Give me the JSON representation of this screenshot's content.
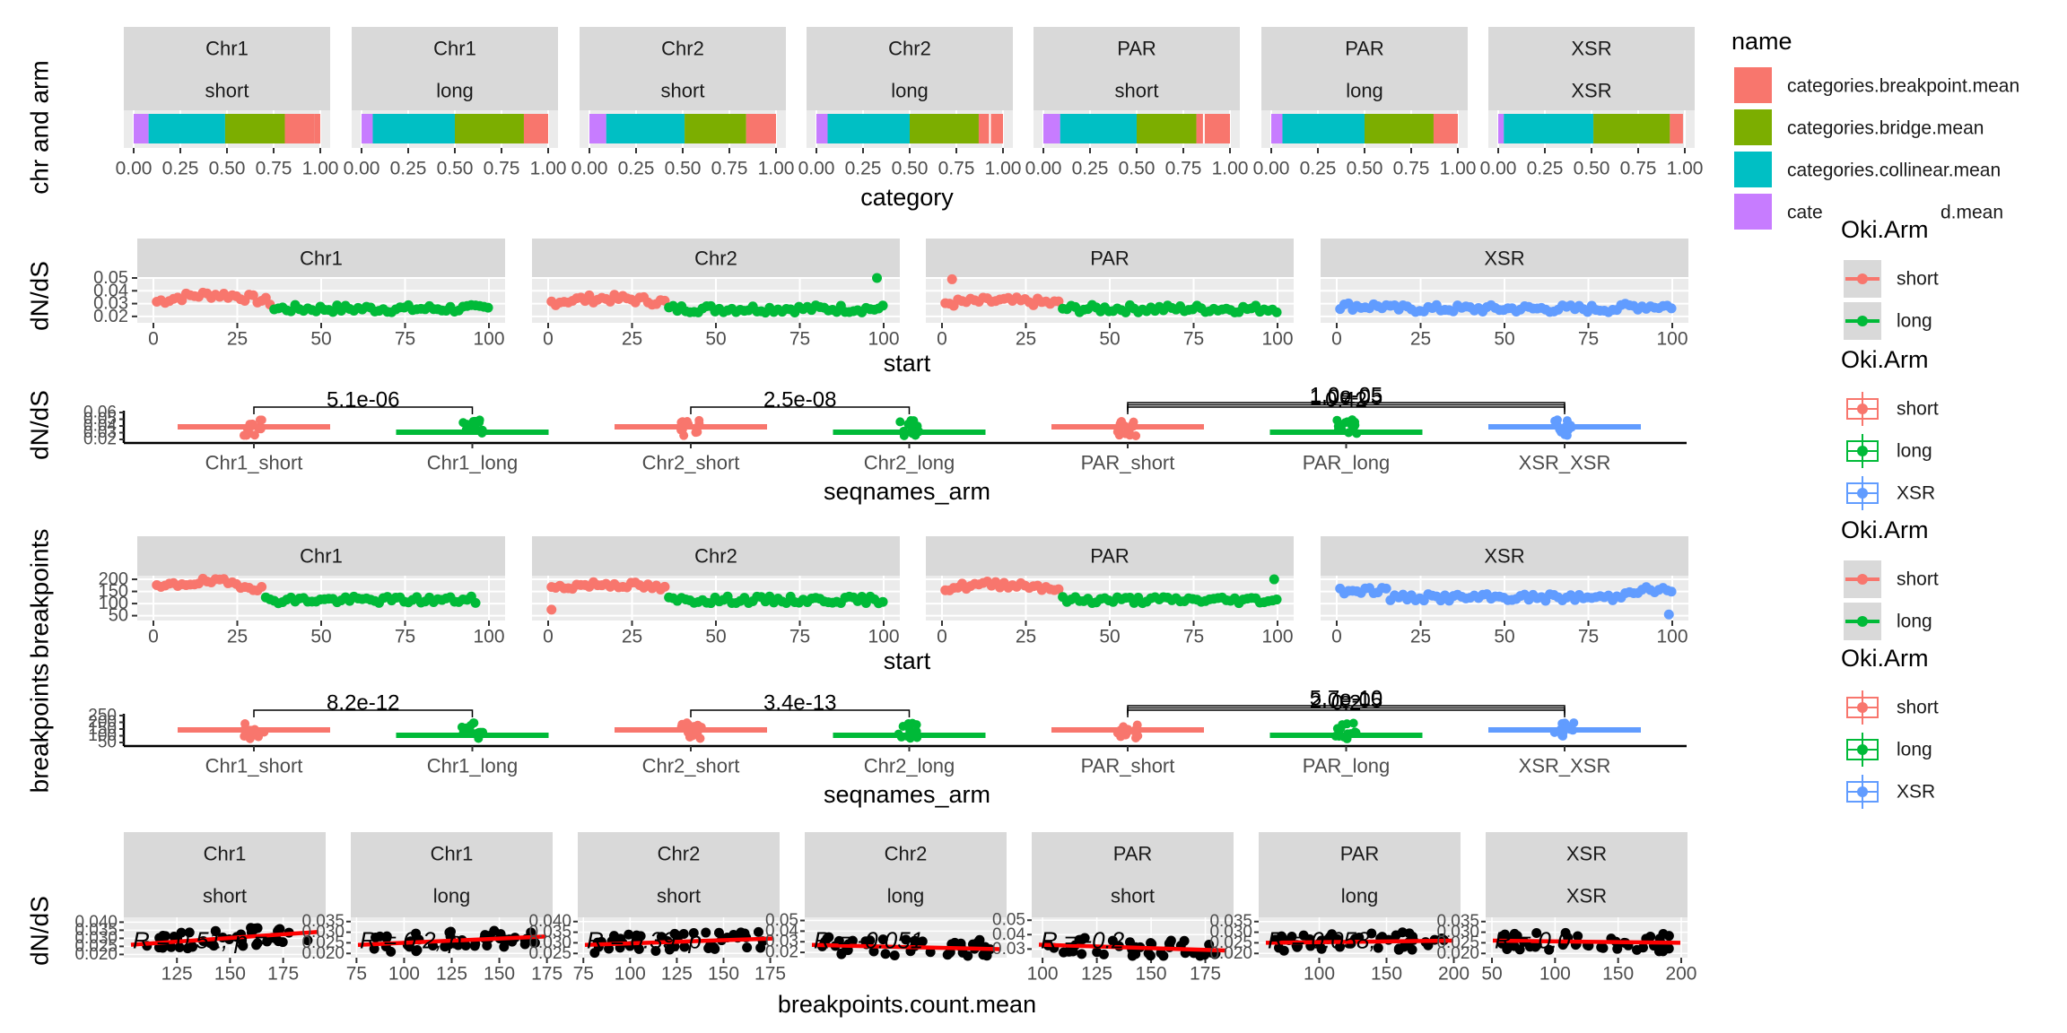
{
  "colors": {
    "strip_bg": "#D9D9D9",
    "panel_bg": "#EBEBEB",
    "grid": "#FFFFFF",
    "short": "#F8766D",
    "long": "#00BA38",
    "xsr": "#619CFF",
    "breakpoint": "#F8766D",
    "bridge": "#7CAE00",
    "collinear": "#00BFC4",
    "fourth_category": "#C77CFF",
    "fit_line": "#FF0000",
    "points": "#000000"
  },
  "legends": {
    "category": {
      "title": "name",
      "items": [
        {
          "label": "categories.breakpoint.mean",
          "color": "#F8766D"
        },
        {
          "label": "categories.bridge.mean",
          "color": "#7CAE00"
        },
        {
          "label": "categories.collinear.mean",
          "color": "#00BFC4"
        },
        {
          "label": "cate",
          "color": "#C77CFF",
          "label_tail": "d.mean"
        }
      ]
    },
    "arm_points_1": {
      "title": "Oki.Arm",
      "items": [
        {
          "label": "short",
          "color": "#F8766D"
        },
        {
          "label": "long",
          "color": "#00BA38"
        }
      ]
    },
    "arm_box_1": {
      "title": "Oki.Arm",
      "items": [
        {
          "label": "short",
          "color": "#F8766D"
        },
        {
          "label": "long",
          "color": "#00BA38"
        },
        {
          "label": "XSR",
          "color": "#619CFF"
        }
      ]
    },
    "arm_points_2": {
      "title": "Oki.Arm",
      "items": [
        {
          "label": "short",
          "color": "#F8766D"
        },
        {
          "label": "long",
          "color": "#00BA38"
        }
      ]
    },
    "arm_box_2": {
      "title": "Oki.Arm",
      "items": [
        {
          "label": "short",
          "color": "#F8766D"
        },
        {
          "label": "long",
          "color": "#00BA38"
        },
        {
          "label": "XSR",
          "color": "#619CFF"
        }
      ]
    }
  },
  "chart_data": [
    {
      "type": "bar",
      "orientation": "horizontal-stacked",
      "ylabel": "chr and arm",
      "xlabel": "category",
      "xlim": [
        0,
        1
      ],
      "xticks": [
        "0.00",
        "0.25",
        "0.50",
        "0.75",
        "1.00"
      ],
      "facets": [
        {
          "strip": [
            "Chr1",
            "short"
          ],
          "segments": [
            0.08,
            0.41,
            0.32,
            0.16,
            0.03
          ],
          "ticks": []
        },
        {
          "strip": [
            "Chr1",
            "long"
          ],
          "segments": [
            0.06,
            0.44,
            0.37,
            0.13
          ],
          "ticks": []
        },
        {
          "strip": [
            "Chr2",
            "short"
          ],
          "segments": [
            0.09,
            0.42,
            0.33,
            0.16
          ],
          "ticks": []
        },
        {
          "strip": [
            "Chr2",
            "long"
          ],
          "segments": [
            0.06,
            0.44,
            0.37,
            0.07,
            0.06
          ],
          "ticks": [
            0.93
          ]
        },
        {
          "strip": [
            "PAR",
            "short"
          ],
          "segments": [
            0.09,
            0.41,
            0.32,
            0.04,
            0.14
          ],
          "ticks": [
            0.86
          ]
        },
        {
          "strip": [
            "PAR",
            "long"
          ],
          "segments": [
            0.06,
            0.44,
            0.37,
            0.13
          ],
          "ticks": []
        },
        {
          "strip": [
            "XSR",
            "XSR"
          ],
          "segments": [
            0.03,
            0.48,
            0.41,
            0.07
          ],
          "ticks": []
        }
      ],
      "segment_colors": [
        "#C77CFF",
        "#00BFC4",
        "#7CAE00",
        "#F8766D",
        "#F8766D"
      ],
      "grid": true,
      "legend": "top-right"
    },
    {
      "type": "scatter",
      "ylabel": "dN/dS",
      "xlabel": "start",
      "xlim": [
        0,
        100
      ],
      "ylim": [
        0.015,
        0.05
      ],
      "xticks": [
        "0",
        "25",
        "50",
        "75",
        "100"
      ],
      "yticks": [
        "0.02",
        "0.03",
        "0.04",
        "0.05"
      ],
      "facets": [
        {
          "strip": "Chr1",
          "split": 35,
          "xmax": 100,
          "first": "short",
          "second": "long",
          "y_short": 0.031,
          "y_long": 0.026,
          "bump": 0.006,
          "noise": 0.003
        },
        {
          "strip": "Chr2",
          "split": 35,
          "xmax": 100,
          "first": "short",
          "second": "long",
          "y_short": 0.031,
          "y_long": 0.026,
          "bump": 0.003,
          "noise": 0.003,
          "outlier": [
            98,
            0.05
          ]
        },
        {
          "strip": "PAR",
          "split": 35,
          "xmax": 100,
          "first": "short",
          "second": "long",
          "y_short": 0.03,
          "y_long": 0.026,
          "bump": 0.002,
          "noise": 0.003,
          "outlier": [
            3,
            0.049
          ]
        },
        {
          "strip": "XSR",
          "split": 0,
          "xmax": 100,
          "first": "xsr",
          "second": "xsr",
          "y_short": 0.026,
          "y_long": 0.026,
          "bump": 0.002,
          "noise": 0.003
        }
      ],
      "grid": true
    },
    {
      "type": "box",
      "ylabel": "dN/dS",
      "xlabel": "seqnames_arm",
      "categories": [
        "Chr1_short",
        "Chr1_long",
        "Chr2_short",
        "Chr2_long",
        "PAR_short",
        "PAR_long",
        "XSR_XSR"
      ],
      "groups": [
        "short",
        "long",
        "short",
        "long",
        "short",
        "long",
        "xsr"
      ],
      "yticks": [
        "0.02",
        "0.03",
        "0.04",
        "0.05",
        "0.06"
      ],
      "annotations": [
        {
          "text": "5.1e-06",
          "from": 0,
          "to": 1,
          "level": 0
        },
        {
          "text": "2.5e-08",
          "from": 2,
          "to": 3,
          "level": 0
        },
        {
          "text": "1.0e-05",
          "from": 4,
          "to": 6,
          "level": 2
        },
        {
          "text": "1.0e-05",
          "from": 4,
          "to": 6,
          "level": 1
        },
        {
          "text": "0.42",
          "from": 4,
          "to": 6,
          "level": 0
        }
      ]
    },
    {
      "type": "scatter",
      "ylabel": "breakpoints",
      "xlabel": "start",
      "xlim": [
        0,
        100
      ],
      "ylim": [
        30,
        215
      ],
      "xticks": [
        "0",
        "25",
        "50",
        "75",
        "100"
      ],
      "yticks": [
        "50",
        "100",
        "150",
        "200"
      ],
      "facets": [
        {
          "strip": "Chr1",
          "split": 33,
          "xmax": 97,
          "first": "short",
          "second": "long",
          "y_short": 160,
          "y_long": 115,
          "bump": 30,
          "noise": 14
        },
        {
          "strip": "Chr2",
          "split": 35,
          "xmax": 100,
          "first": "short",
          "second": "long",
          "y_short": 160,
          "y_long": 115,
          "bump": 20,
          "noise": 14,
          "outlier": [
            1,
            75
          ]
        },
        {
          "strip": "PAR",
          "split": 35,
          "xmax": 100,
          "first": "short",
          "second": "long",
          "y_short": 160,
          "y_long": 115,
          "bump": 20,
          "noise": 14,
          "outlier": [
            99,
            200
          ]
        },
        {
          "strip": "XSR",
          "split": 0,
          "xmax": 100,
          "first": "xsr",
          "second": "xsr",
          "y_short": 125,
          "y_long": 125,
          "bump": 30,
          "noise": 14,
          "outlier": [
            99,
            55
          ]
        }
      ],
      "grid": true
    },
    {
      "type": "box",
      "ylabel": "breakpoints",
      "xlabel": "seqnames_arm",
      "categories": [
        "Chr1_short",
        "Chr1_long",
        "Chr2_short",
        "Chr2_long",
        "PAR_short",
        "PAR_long",
        "XSR_XSR"
      ],
      "groups": [
        "short",
        "long",
        "short",
        "long",
        "short",
        "long",
        "xsr"
      ],
      "yticks": [
        "50",
        "100",
        "150",
        "200",
        "250"
      ],
      "annotations": [
        {
          "text": "8.2e-12",
          "from": 0,
          "to": 1,
          "level": 0
        },
        {
          "text": "3.4e-13",
          "from": 2,
          "to": 3,
          "level": 0
        },
        {
          "text": "5.7e-10",
          "from": 4,
          "to": 6,
          "level": 2
        },
        {
          "text": "2.0e-05",
          "from": 4,
          "to": 6,
          "level": 1
        },
        {
          "text": "0.2",
          "from": 4,
          "to": 6,
          "level": 0
        }
      ]
    },
    {
      "type": "scatter",
      "ylabel": "dN/dS",
      "xlabel": "breakpoints.count.mean",
      "facets": [
        {
          "strip": [
            "Chr1",
            "short"
          ],
          "xlim": [
            100,
            195
          ],
          "xticks": [
            125,
            150,
            175
          ],
          "ylim": [
            0.018,
            0.043
          ],
          "yticks": [
            "0.020",
            "0.025",
            "0.030",
            "0.035",
            "0.040"
          ],
          "stat": "R = 0.51, p = ",
          "line": [
            0.026,
            0.034
          ]
        },
        {
          "strip": [
            "Chr1",
            "long"
          ],
          "xlim": [
            72,
            178
          ],
          "xticks": [
            75,
            100,
            125,
            150,
            175
          ],
          "ylim": [
            0.018,
            0.037
          ],
          "yticks": [
            "0.020",
            "0.025",
            "0.030",
            "0.035"
          ],
          "stat": "R = 0.2, p",
          "line": [
            0.024,
            0.028
          ]
        },
        {
          "strip": [
            "Chr2",
            "short"
          ],
          "xlim": [
            72,
            180
          ],
          "xticks": [
            75,
            100,
            125,
            150,
            175
          ],
          "ylim": [
            0.023,
            0.042
          ],
          "yticks": [
            "0.025",
            "0.030",
            "0.035",
            "0.040"
          ],
          "stat": "R = 0.39, p",
          "line": [
            0.029,
            0.032
          ]
        },
        {
          "strip": [
            "Chr2",
            "long"
          ],
          "xlim": [
            65,
            230
          ],
          "xticks": [],
          "ylim": [
            0.015,
            0.053
          ],
          "yticks": [
            "0.02",
            "0.03",
            "0.04",
            "0.05"
          ],
          "stat": "R = -0.051",
          "line": [
            0.027,
            0.023
          ]
        },
        {
          "strip": [
            "PAR",
            "short"
          ],
          "xlim": [
            95,
            188
          ],
          "xticks": [
            100,
            125,
            150,
            175
          ],
          "ylim": [
            0.024,
            0.052
          ],
          "yticks": [
            "0.03",
            "0.04",
            "0.05"
          ],
          "stat": "R = -0.2",
          "line": [
            0.033,
            0.029
          ]
        },
        {
          "strip": [
            "PAR",
            "long"
          ],
          "xlim": [
            55,
            205
          ],
          "xticks": [
            100,
            150,
            200
          ],
          "ylim": [
            0.018,
            0.037
          ],
          "yticks": [
            "0.020",
            "0.025",
            "0.030",
            "0.035"
          ],
          "stat": "R = 0.058,",
          "line": [
            0.025,
            0.026
          ]
        },
        {
          "strip": [
            "XSR",
            "XSR"
          ],
          "xlim": [
            45,
            205
          ],
          "xticks": [
            50,
            100,
            150,
            200
          ],
          "ylim": [
            0.018,
            0.037
          ],
          "yticks": [
            "0.020",
            "0.025",
            "0.030",
            "0.035"
          ],
          "stat": "R = 0.0",
          "line": [
            0.026,
            0.025
          ]
        }
      ],
      "fit_line_color": "#FF0000",
      "grid": true
    }
  ]
}
